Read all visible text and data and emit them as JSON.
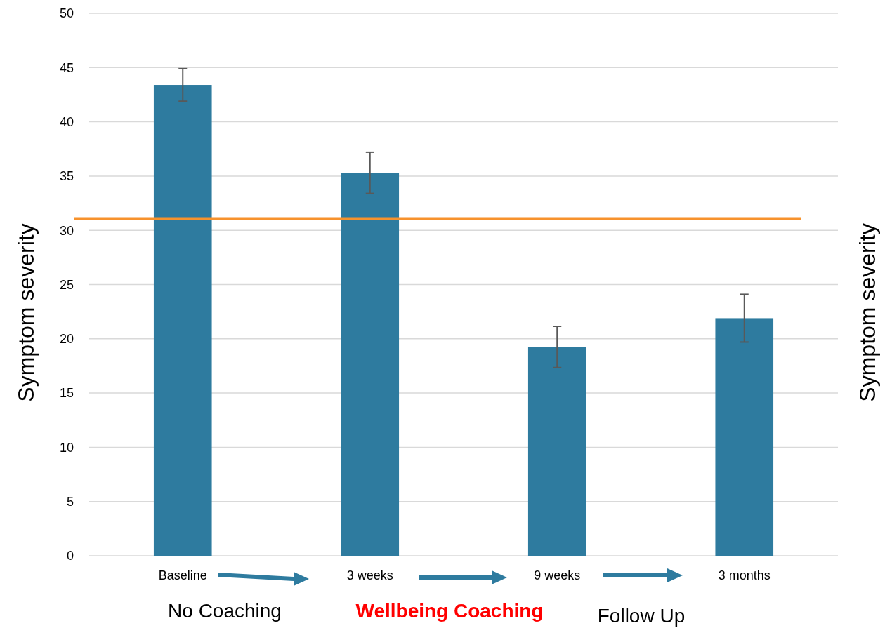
{
  "chart_data": {
    "type": "bar",
    "categories": [
      "Baseline",
      "3 weeks",
      "9 weeks",
      "3 months"
    ],
    "values": [
      43.4,
      35.3,
      19.25,
      21.9
    ],
    "errors": [
      1.5,
      1.9,
      1.9,
      2.2
    ],
    "color": "#2e7b9f",
    "ylabel": "Symptom severity",
    "y2label": "Symptom severity",
    "ylim": [
      0,
      50
    ],
    "yticks": [
      0,
      5,
      10,
      15,
      20,
      25,
      30,
      35,
      40,
      45,
      50
    ],
    "grid": "y",
    "ref_lines": [
      {
        "axis": "y",
        "value": 31.1,
        "color": "#f7922c"
      }
    ],
    "annotations": [
      "No Coaching",
      "Wellbeing Coaching",
      "Follow Up"
    ]
  }
}
